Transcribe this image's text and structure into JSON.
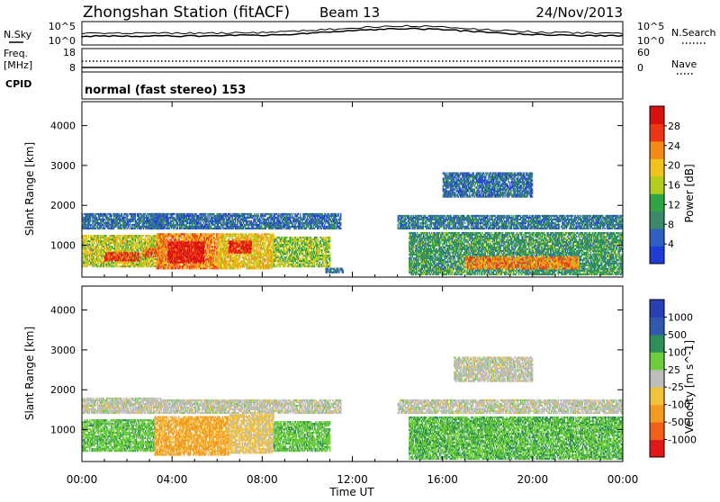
{
  "header": {
    "station": "Zhongshan Station (fitACF)",
    "beam": "Beam 13",
    "date": "24/Nov/2013",
    "cpid_label": "CPID",
    "mode": "normal (fast stereo) 153"
  },
  "aux_panel": {
    "left_top": "N.Sky",
    "left_bottom": "Freq.",
    "left_unit": "[MHz]",
    "right_top": "N.Search",
    "right_bottom": "Nave",
    "sky_ticks": [
      "10^5",
      "10^0"
    ],
    "search_ticks": [
      "10^5",
      "10^0"
    ],
    "freq_ticks": [
      "18",
      "8"
    ],
    "nave_ticks": [
      "60",
      "0"
    ]
  },
  "x_axis": {
    "label": "Time UT",
    "ticks": [
      "00:00",
      "04:00",
      "08:00",
      "12:00",
      "16:00",
      "20:00",
      "00:00"
    ]
  },
  "colors": {
    "power": [
      "#1f3dd6",
      "#2f5fc0",
      "#3a8a6a",
      "#2fa545",
      "#b6cc1d",
      "#f0c21a",
      "#f38a15",
      "#ee3515",
      "#d81010"
    ],
    "velocity": [
      "#e21818",
      "#f06018",
      "#f39a22",
      "#f1c23c",
      "#bdbdbd",
      "#6ccd3c",
      "#2f8f5a",
      "#2f5ab0",
      "#2a3fb6"
    ]
  },
  "chart_data": [
    {
      "type": "heatmap",
      "title": "",
      "xlabel": "Time UT",
      "ylabel": "Slant Range [km]",
      "xlim": [
        "00:00",
        "24:00"
      ],
      "ylim": [
        200,
        4600
      ],
      "y_ticks": [
        "1000",
        "2000",
        "3000",
        "4000"
      ],
      "colorbar": {
        "label": "Power [dB]",
        "ticks": [
          "4",
          "8",
          "12",
          "16",
          "20",
          "24",
          "28"
        ],
        "range": [
          0,
          30
        ]
      },
      "regions": [
        {
          "t0": 0.0,
          "t1": 3.6,
          "r0": 1400,
          "r1": 1800,
          "level": 6
        },
        {
          "t0": 0.0,
          "t1": 3.6,
          "r0": 450,
          "r1": 1250,
          "level": 16
        },
        {
          "t0": 1.0,
          "t1": 2.5,
          "r0": 600,
          "r1": 800,
          "level": 26
        },
        {
          "t0": 2.7,
          "t1": 3.3,
          "r0": 700,
          "r1": 900,
          "level": 24
        },
        {
          "t0": 3.3,
          "t1": 6.0,
          "r0": 400,
          "r1": 1300,
          "level": 22
        },
        {
          "t0": 3.8,
          "t1": 5.4,
          "r0": 550,
          "r1": 1050,
          "level": 28
        },
        {
          "t0": 6.0,
          "t1": 8.5,
          "r0": 400,
          "r1": 1300,
          "level": 18
        },
        {
          "t0": 6.5,
          "t1": 7.5,
          "r0": 800,
          "r1": 1100,
          "level": 27
        },
        {
          "t0": 3.0,
          "t1": 11.5,
          "r0": 1400,
          "r1": 1800,
          "level": 6
        },
        {
          "t0": 8.5,
          "t1": 11.0,
          "r0": 450,
          "r1": 1200,
          "level": 14
        },
        {
          "t0": 10.8,
          "t1": 11.6,
          "r0": 300,
          "r1": 400,
          "level": 6
        },
        {
          "t0": 14.0,
          "t1": 24.0,
          "r0": 1400,
          "r1": 1750,
          "level": 7
        },
        {
          "t0": 16.0,
          "t1": 20.0,
          "r0": 2200,
          "r1": 2800,
          "level": 6
        },
        {
          "t0": 14.5,
          "t1": 24.0,
          "r0": 250,
          "r1": 1300,
          "level": 10
        },
        {
          "t0": 17.0,
          "t1": 22.0,
          "r0": 400,
          "r1": 700,
          "level": 22
        }
      ]
    },
    {
      "type": "heatmap",
      "title": "",
      "xlabel": "Time UT",
      "ylabel": "Slant Range [km]",
      "xlim": [
        "00:00",
        "24:00"
      ],
      "ylim": [
        200,
        4600
      ],
      "y_ticks": [
        "1000",
        "2000",
        "3000",
        "4000"
      ],
      "colorbar": {
        "label": "Velocity [m s^-1]",
        "ticks": [
          "-1000",
          "-500",
          "-100",
          "-25",
          "25",
          "100",
          "500",
          "1000"
        ],
        "range": [
          -1200,
          1200
        ]
      },
      "regions": [
        {
          "t0": 0.0,
          "t1": 3.5,
          "r0": 1400,
          "r1": 1800,
          "level": 0
        },
        {
          "t0": 0.0,
          "t1": 3.2,
          "r0": 450,
          "r1": 1250,
          "level": 300
        },
        {
          "t0": 3.2,
          "t1": 6.5,
          "r0": 350,
          "r1": 1300,
          "level": -450
        },
        {
          "t0": 6.5,
          "t1": 8.5,
          "r0": 400,
          "r1": 1350,
          "level": -200
        },
        {
          "t0": 8.5,
          "t1": 11.0,
          "r0": 450,
          "r1": 1200,
          "level": 300
        },
        {
          "t0": 3.5,
          "t1": 11.5,
          "r0": 1400,
          "r1": 1750,
          "level": 0
        },
        {
          "t0": 14.0,
          "t1": 24.0,
          "r0": 1400,
          "r1": 1750,
          "level": 0
        },
        {
          "t0": 16.5,
          "t1": 20.0,
          "r0": 2200,
          "r1": 2800,
          "level": 0
        },
        {
          "t0": 14.5,
          "t1": 24.0,
          "r0": 250,
          "r1": 1300,
          "level": 350
        }
      ]
    }
  ]
}
